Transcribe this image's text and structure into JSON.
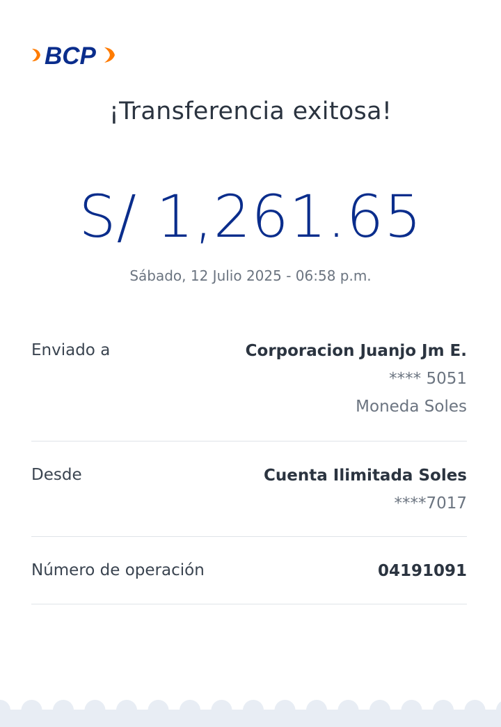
{
  "brand": {
    "logo_text": "BCP",
    "colors": {
      "blue": "#0a2d8c",
      "orange": "#ff7b00"
    }
  },
  "header": {
    "title": "¡Transferencia exitosa!"
  },
  "transfer": {
    "amount": "S/ 1,261.65",
    "datetime": "Sábado, 12 Julio 2025 - 06:58 p.m."
  },
  "details": {
    "sent_to": {
      "label": "Enviado a",
      "name": "Corporacion Juanjo Jm E.",
      "account": "**** 5051",
      "currency": "Moneda Soles"
    },
    "from": {
      "label": "Desde",
      "account_name": "Cuenta Ilimitada Soles",
      "account": "****7017"
    },
    "operation": {
      "label": "Número de operación",
      "number": "04191091"
    }
  }
}
